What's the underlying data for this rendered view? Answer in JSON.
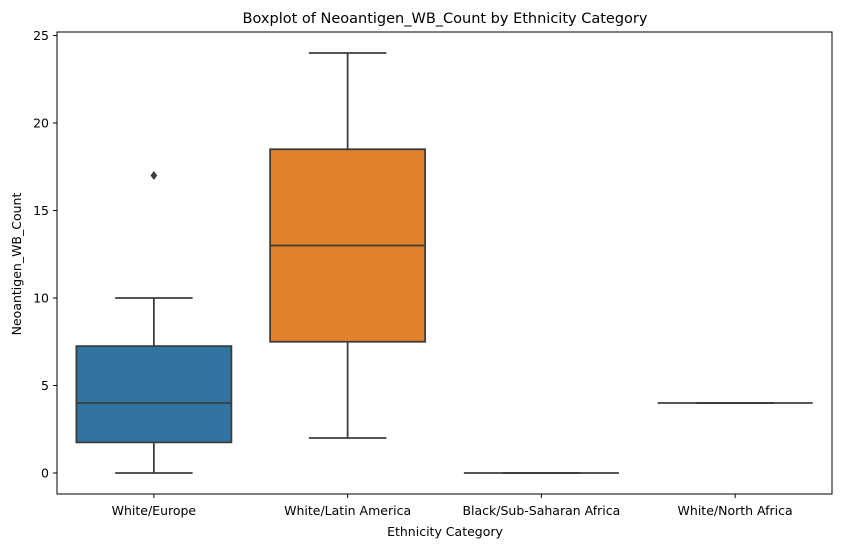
{
  "chart_data": {
    "type": "box",
    "title": "Boxplot of Neoantigen_WB_Count by Ethnicity Category",
    "xlabel": "Ethnicity Category",
    "ylabel": "Neoantigen_WB_Count",
    "ylim": [
      -1.2,
      25.2
    ],
    "yticks": [
      0,
      5,
      10,
      15,
      20,
      25
    ],
    "grid": false,
    "legend": "none",
    "categories": [
      "White/Europe",
      "White/Latin America",
      "Black/Sub-Saharan Africa",
      "White/North Africa"
    ],
    "boxes": [
      {
        "category": "White/Europe",
        "whisker_low": 0,
        "q1": 1.75,
        "median": 4,
        "q3": 7.25,
        "whisker_high": 10,
        "outliers": [
          17
        ],
        "color": "#3274a1"
      },
      {
        "category": "White/Latin America",
        "whisker_low": 2,
        "q1": 7.5,
        "median": 13,
        "q3": 18.5,
        "whisker_high": 24,
        "outliers": [],
        "color": "#e1812c"
      },
      {
        "category": "Black/Sub-Saharan Africa",
        "whisker_low": 0,
        "q1": 0,
        "median": 0,
        "q3": 0,
        "whisker_high": 0,
        "outliers": [],
        "color": "#3a923a"
      },
      {
        "category": "White/North Africa",
        "whisker_low": 4,
        "q1": 4,
        "median": 4,
        "q3": 4,
        "whisker_high": 4,
        "outliers": [],
        "color": "#c03d3e"
      }
    ],
    "line_color": "#3d3d3d"
  }
}
